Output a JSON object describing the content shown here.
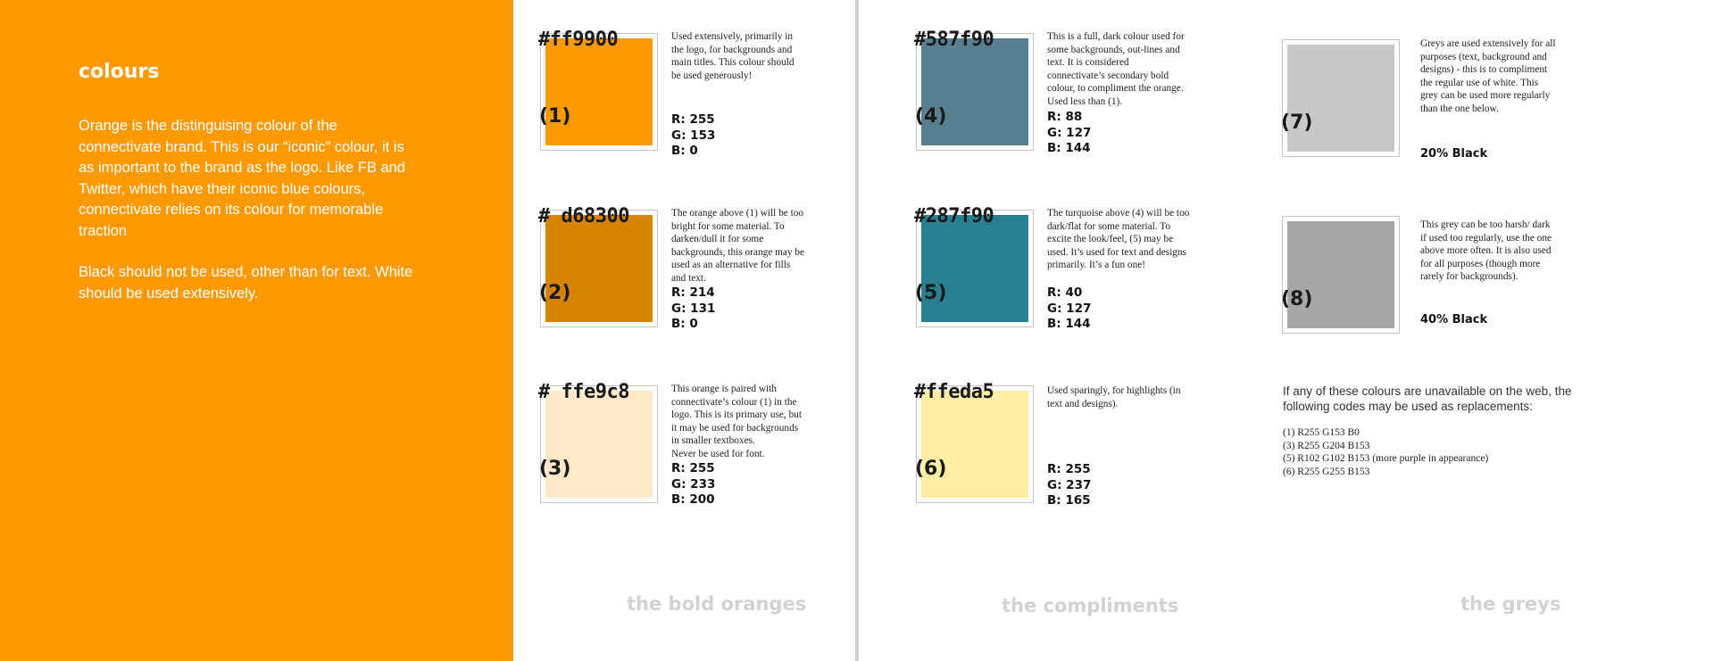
{
  "left_panel": {
    "title": "colours",
    "paragraphs": [
      "Orange is the distinguising colour of the connectivate brand. This is our “iconic” colour, it is as important to the brand as the logo. Like FB and Twitter, which have their iconic blue colours, connectivate relies on its colour for memorable traction",
      "Black should not be used, other than for text. White should be used extensively."
    ],
    "background": "#ff9900"
  },
  "swatches": [
    {
      "hex": "#ff9900",
      "num": "(1)",
      "color": "#ff9900",
      "desc": "Used extensively, primarily in the logo, for backgrounds and main titles. This colour should be used generously!",
      "r": "R: 255",
      "g": "G: 153",
      "b": "B: 0"
    },
    {
      "hex": "# d68300",
      "num": "(2)",
      "color": "#d68300",
      "desc": "The orange above (1) will be too bright for some material. To darken/dull it for some backgrounds, this orange may be used as an alternative for fills and text.",
      "r": "R: 214",
      "g": "G: 131",
      "b": "B: 0"
    },
    {
      "hex": "# ffe9c8",
      "num": "(3)",
      "color": "#ffe9c8",
      "desc": "This orange is paired with connectivate’s colour (1) in the logo. This is its primary use, but it may be used for backgrounds in smaller textboxes.\nNever be used for font.",
      "r": "R: 255",
      "g": "G: 233",
      "b": "B: 200"
    },
    {
      "hex": "#587f90",
      "num": "(4)",
      "color": "#587f90",
      "desc": "This is a full, dark colour used for some backgrounds, out-lines and text. It is considered connectivate’s secondary bold colour, to compliment the orange. Used less than (1).",
      "r": "R: 88",
      "g": "G: 127",
      "b": "B: 144"
    },
    {
      "hex": "#287f90",
      "num": "(5)",
      "color": "#287f90",
      "desc": "The turquoise above (4) will be too dark/flat for some material. To excite the look/feel, (5) may be used.  It’s used for text and designs primarily. It’s a fun one!",
      "r": "R: 40",
      "g": "G: 127",
      "b": "B: 144"
    },
    {
      "hex": "#ffeda5",
      "num": "(6)",
      "color": "#ffeda5",
      "desc": "Used sparingly, for highlights (in text and designs).",
      "r": "R: 255",
      "g": "G: 237",
      "b": "B: 165"
    }
  ],
  "greys": [
    {
      "num": "(7)",
      "color": "#c8c8c8",
      "desc": "Greys are used extensively for all purposes (text, background and designs) - this is to compliment the regular use of white. This grey can be used more regularly than the one below.",
      "label": "20% Black"
    },
    {
      "num": "(8)",
      "color": "#a6a6a6",
      "desc": "This grey can be too harsh/ dark if used too regularly, use the one above more often. It is also used for all purposes (though more rarely for backgrounds).",
      "label": "40% Black"
    }
  ],
  "replacements": {
    "intro": "If any of these colours are unavailable on the web, the following codes may be used as replacements:",
    "items": [
      "(1) R255 G153 B0",
      "(3) R255 G204 B153",
      "(5) R102 G102 B153 (more purple in appearance)",
      "(6) R255 G255 B153"
    ]
  },
  "section_labels": {
    "oranges": "the bold oranges",
    "compliments": "the compliments",
    "greys": "the greys"
  }
}
